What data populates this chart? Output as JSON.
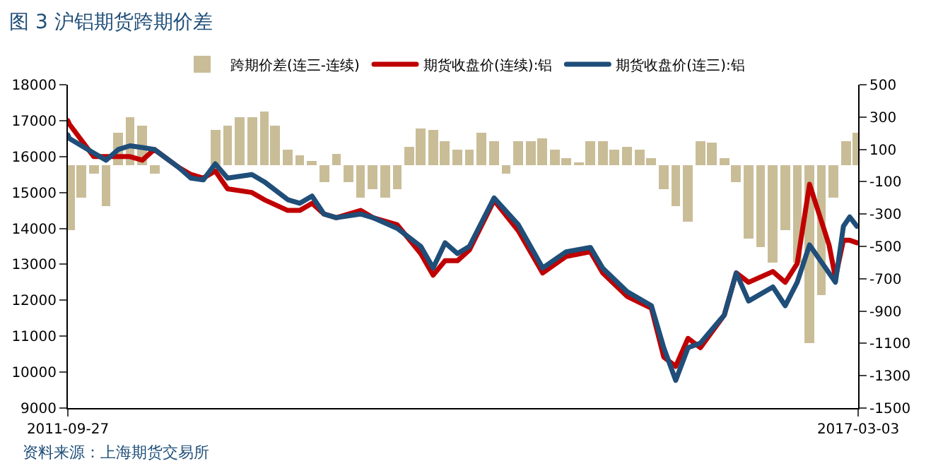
{
  "chart_data": {
    "type": "line",
    "title": "图 3 沪铝期货跨期价差",
    "annotations": [
      "资料来源：上海期货交易所"
    ],
    "xlim": [
      "2011-09-27",
      "2017-03-03"
    ],
    "xticks": [
      {
        "value": "2011-09-27",
        "label": "2011-09-27"
      },
      {
        "value": "2017-03-03",
        "label": "2017-03-03"
      }
    ],
    "ylim": [
      9000,
      18000
    ],
    "yticks": [
      9000,
      10000,
      11000,
      12000,
      13000,
      14000,
      15000,
      16000,
      17000,
      18000
    ],
    "y2lim": [
      -1500,
      500
    ],
    "y2ticks": [
      -1500,
      -1300,
      -1100,
      -900,
      -700,
      -500,
      -300,
      -100,
      100,
      300,
      500
    ],
    "legend": "top",
    "series": [
      {
        "name": "跨期价差(连三-连续)",
        "type": "bar",
        "axis": "y2",
        "color": "#c9bd98",
        "x": [
          "2011-10",
          "2011-11",
          "2011-12",
          "2012-01",
          "2012-02",
          "2012-03",
          "2012-04",
          "2012-05",
          "2012-06",
          "2012-07",
          "2012-08",
          "2012-09",
          "2012-10",
          "2012-11",
          "2012-12",
          "2013-01",
          "2013-02",
          "2013-03",
          "2013-04",
          "2013-05",
          "2013-06",
          "2013-07",
          "2013-08",
          "2013-09",
          "2013-10",
          "2013-11",
          "2013-12",
          "2014-01",
          "2014-02",
          "2014-03",
          "2014-04",
          "2014-05",
          "2014-06",
          "2014-07",
          "2014-08",
          "2014-09",
          "2014-10",
          "2014-11",
          "2014-12",
          "2015-01",
          "2015-02",
          "2015-03",
          "2015-04",
          "2015-05",
          "2015-06",
          "2015-07",
          "2015-08",
          "2015-09",
          "2015-10",
          "2015-11",
          "2015-12",
          "2016-01",
          "2016-02",
          "2016-03",
          "2016-04",
          "2016-05",
          "2016-06",
          "2016-07",
          "2016-08",
          "2016-09",
          "2016-10",
          "2016-11",
          "2016-12",
          "2017-01",
          "2017-02",
          "2017-03"
        ],
        "values": [
          -400,
          -200,
          -50,
          -250,
          200,
          300,
          250,
          -50,
          0,
          null,
          0,
          0,
          220,
          250,
          300,
          300,
          330,
          250,
          100,
          60,
          30,
          -100,
          70,
          -100,
          -200,
          -150,
          -200,
          -150,
          120,
          230,
          220,
          150,
          100,
          100,
          200,
          150,
          -50,
          150,
          150,
          170,
          100,
          50,
          20,
          150,
          150,
          100,
          120,
          100,
          50,
          -150,
          -250,
          -350,
          150,
          140,
          50,
          -100,
          -450,
          -500,
          -600,
          -400,
          -600,
          -1100,
          -800,
          -200,
          150,
          200
        ]
      },
      {
        "name": "期货收盘价(连续):铝",
        "color": "#c00000",
        "x": [
          "2011-09-27",
          "2011-10",
          "2011-12",
          "2012-01",
          "2012-02",
          "2012-03",
          "2012-04",
          "2012-05",
          "2012-07",
          "2012-08",
          "2012-09",
          "2012-10",
          "2012-11",
          "2013-01",
          "2013-02",
          "2013-04",
          "2013-05",
          "2013-06",
          "2013-07",
          "2013-08",
          "2013-10",
          "2013-11",
          "2014-01",
          "2014-03",
          "2014-04",
          "2014-05",
          "2014-06",
          "2014-07",
          "2014-09",
          "2014-11",
          "2015-01",
          "2015-03",
          "2015-05",
          "2015-06",
          "2015-08",
          "2015-10",
          "2015-11",
          "2015-12",
          "2016-01",
          "2016-02",
          "2016-04",
          "2016-05",
          "2016-06",
          "2016-08",
          "2016-09",
          "2016-10",
          "2016-11",
          "2016-12-20",
          "2017-01-05",
          "2017-01-25",
          "2017-02-10",
          "2017-02-28"
        ],
        "values": [
          17000,
          16900,
          16000,
          16000,
          16000,
          16000,
          15900,
          16200,
          15700,
          15500,
          15400,
          15600,
          15100,
          15000,
          14800,
          14500,
          14500,
          14700,
          14400,
          14300,
          14500,
          14300,
          14100,
          13300,
          12700,
          13100,
          13100,
          13400,
          14780,
          13930,
          12760,
          13220,
          13350,
          12760,
          12110,
          11780,
          10420,
          10160,
          10940,
          10680,
          11590,
          12760,
          12500,
          12800,
          12500,
          13020,
          15230,
          13540,
          12630,
          13670,
          13670,
          13600
        ]
      },
      {
        "name": "期货收盘价(连三):铝",
        "color": "#1f4e79",
        "x": [
          "2011-09-27",
          "2011-10",
          "2011-12",
          "2012-01",
          "2012-02",
          "2012-03",
          "2012-04",
          "2012-05",
          "2012-07",
          "2012-08",
          "2012-09",
          "2012-10",
          "2012-11",
          "2013-01",
          "2013-02",
          "2013-04",
          "2013-05",
          "2013-06",
          "2013-07",
          "2013-08",
          "2013-10",
          "2013-11",
          "2014-01",
          "2014-03",
          "2014-04",
          "2014-05",
          "2014-06",
          "2014-07",
          "2014-09",
          "2014-11",
          "2015-01",
          "2015-03",
          "2015-05",
          "2015-06",
          "2015-08",
          "2015-10",
          "2015-11",
          "2015-12",
          "2016-01",
          "2016-02",
          "2016-04",
          "2016-05",
          "2016-06",
          "2016-08",
          "2016-09",
          "2016-10",
          "2016-11",
          "2016-12-20",
          "2017-01-05",
          "2017-01-25",
          "2017-02-10",
          "2017-02-28"
        ],
        "values": [
          16600,
          16500,
          16100,
          15900,
          16200,
          16300,
          16250,
          16200,
          15700,
          15400,
          15350,
          15800,
          15400,
          15500,
          15300,
          14800,
          14700,
          14900,
          14400,
          14300,
          14400,
          14300,
          14000,
          13500,
          12900,
          13600,
          13300,
          13500,
          14850,
          14100,
          12900,
          13350,
          13470,
          12890,
          12240,
          11850,
          10680,
          9770,
          10680,
          10810,
          11590,
          12760,
          11980,
          12370,
          11850,
          12500,
          13540,
          12760,
          12500,
          14060,
          14320,
          14060
        ]
      }
    ]
  }
}
